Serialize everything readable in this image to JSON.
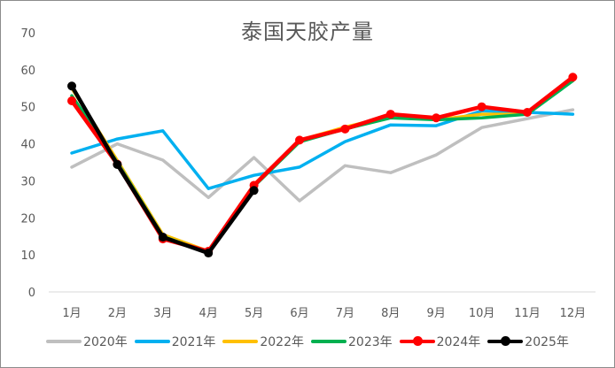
{
  "chart_data": {
    "type": "line",
    "title": "泰国天胶产量",
    "xlabel": "",
    "ylabel": "",
    "ylim": [
      0,
      70
    ],
    "yticks": [
      0,
      10,
      20,
      30,
      40,
      50,
      60,
      70
    ],
    "grid": false,
    "legend_position": "bottom",
    "categories": [
      "1月",
      "2月",
      "3月",
      "4月",
      "5月",
      "6月",
      "7月",
      "8月",
      "9月",
      "10月",
      "11月",
      "12月"
    ],
    "series": [
      {
        "name": "2020年",
        "color": "#BFBFBF",
        "markers": false,
        "values": [
          33.7,
          40.0,
          35.6,
          25.5,
          36.3,
          24.6,
          34.1,
          32.2,
          37.0,
          44.4,
          46.8,
          49.2
        ]
      },
      {
        "name": "2021年",
        "color": "#00B0F0",
        "markers": false,
        "values": [
          37.5,
          41.3,
          43.5,
          27.9,
          31.5,
          33.7,
          40.6,
          45.1,
          44.9,
          48.9,
          48.5,
          48.0
        ]
      },
      {
        "name": "2022年",
        "color": "#FFC000",
        "markers": false,
        "values": [
          55.0,
          35.5,
          15.5,
          11.0,
          29.0,
          41.0,
          44.5,
          47.5,
          46.5,
          48.0,
          48.0,
          57.5
        ]
      },
      {
        "name": "2023年",
        "color": "#00B050",
        "markers": false,
        "values": [
          53.0,
          35.0,
          15.0,
          10.5,
          28.5,
          40.5,
          44.0,
          47.0,
          46.5,
          47.0,
          48.0,
          57.0
        ]
      },
      {
        "name": "2024年",
        "color": "#FF0000",
        "markers": true,
        "values": [
          51.6,
          34.5,
          14.3,
          11.0,
          28.8,
          41.0,
          44.0,
          48.0,
          47.0,
          50.0,
          48.5,
          58.0
        ]
      },
      {
        "name": "2025年",
        "color": "#000000",
        "markers": true,
        "values": [
          55.6,
          34.4,
          14.8,
          10.5,
          27.4
        ]
      }
    ]
  }
}
